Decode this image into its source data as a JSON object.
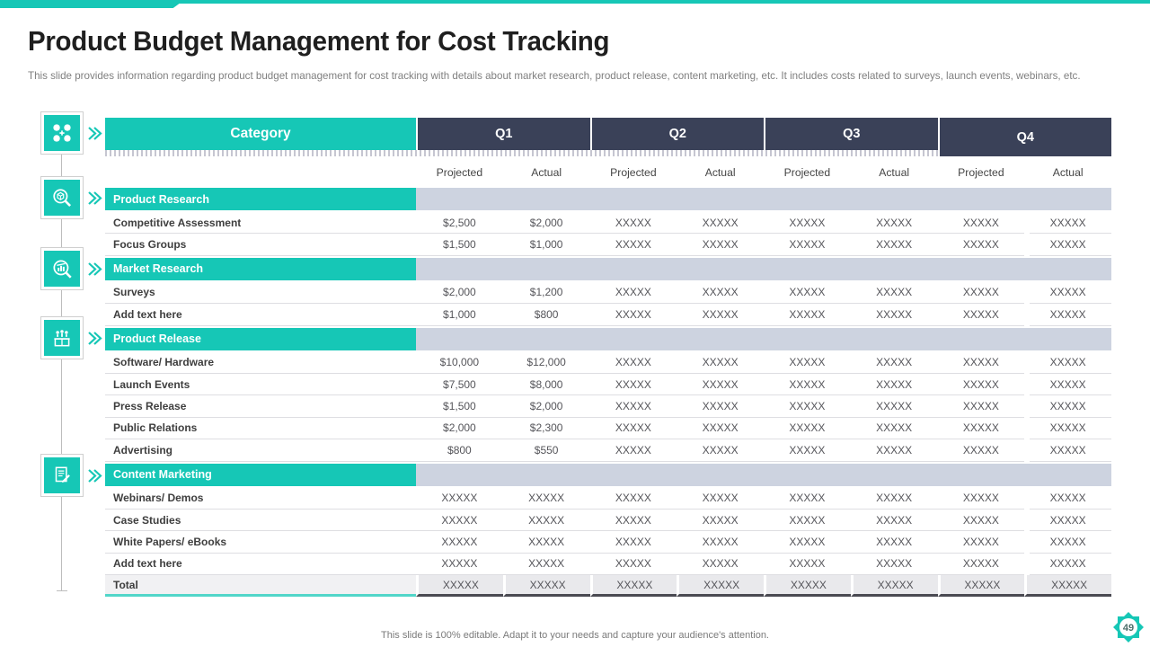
{
  "slide": {
    "title": "Product Budget Management for Cost Tracking",
    "subtitle": "This slide provides information regarding product budget management for cost tracking with details about market research, product release, content marketing, etc. It includes costs related to surveys, launch events, webinars, etc.",
    "footer": "This slide is 100% editable. Adapt it to your needs and capture your audience's attention.",
    "page_number": "49"
  },
  "colors": {
    "teal": "#16C7B6",
    "navy": "#3A4158",
    "section_band": "#CDD3E0",
    "total_band": "#E9E9EC"
  },
  "sidebar": {
    "icons": [
      "dots-plus-icon",
      "search-box-icon",
      "search-chart-icon",
      "launch-box-icon",
      "document-edit-icon"
    ]
  },
  "table": {
    "category_header": "Category",
    "quarter_headers": [
      "Q1",
      "Q2",
      "Q3",
      "Q4"
    ],
    "sub_headers": [
      "Projected",
      "Actual",
      "Projected",
      "Actual",
      "Projected",
      "Actual",
      "Projected",
      "Actual"
    ],
    "rows": [
      {
        "type": "section",
        "label": "Product Research"
      },
      {
        "type": "data",
        "label": "Competitive Assessment",
        "values": [
          "$2,500",
          "$2,000",
          "XXXXX",
          "XXXXX",
          "XXXXX",
          "XXXXX",
          "XXXXX",
          "XXXXX"
        ]
      },
      {
        "type": "data",
        "label": "Focus Groups",
        "values": [
          "$1,500",
          "$1,000",
          "XXXXX",
          "XXXXX",
          "XXXXX",
          "XXXXX",
          "XXXXX",
          "XXXXX"
        ]
      },
      {
        "type": "section",
        "label": "Market Research"
      },
      {
        "type": "data",
        "label": "Surveys",
        "values": [
          "$2,000",
          "$1,200",
          "XXXXX",
          "XXXXX",
          "XXXXX",
          "XXXXX",
          "XXXXX",
          "XXXXX"
        ]
      },
      {
        "type": "data",
        "label": "Add text here",
        "values": [
          "$1,000",
          "$800",
          "XXXXX",
          "XXXXX",
          "XXXXX",
          "XXXXX",
          "XXXXX",
          "XXXXX"
        ]
      },
      {
        "type": "section",
        "label": "Product Release"
      },
      {
        "type": "data",
        "label": "Software/ Hardware",
        "values": [
          "$10,000",
          "$12,000",
          "XXXXX",
          "XXXXX",
          "XXXXX",
          "XXXXX",
          "XXXXX",
          "XXXXX"
        ]
      },
      {
        "type": "data",
        "label": "Launch Events",
        "values": [
          "$7,500",
          "$8,000",
          "XXXXX",
          "XXXXX",
          "XXXXX",
          "XXXXX",
          "XXXXX",
          "XXXXX"
        ]
      },
      {
        "type": "data",
        "label": "Press Release",
        "values": [
          "$1,500",
          "$2,000",
          "XXXXX",
          "XXXXX",
          "XXXXX",
          "XXXXX",
          "XXXXX",
          "XXXXX"
        ]
      },
      {
        "type": "data",
        "label": "Public Relations",
        "values": [
          "$2,000",
          "$2,300",
          "XXXXX",
          "XXXXX",
          "XXXXX",
          "XXXXX",
          "XXXXX",
          "XXXXX"
        ]
      },
      {
        "type": "data",
        "label": "Advertising",
        "values": [
          "$800",
          "$550",
          "XXXXX",
          "XXXXX",
          "XXXXX",
          "XXXXX",
          "XXXXX",
          "XXXXX"
        ]
      },
      {
        "type": "section",
        "label": "Content Marketing"
      },
      {
        "type": "data",
        "label": "Webinars/ Demos",
        "values": [
          "XXXXX",
          "XXXXX",
          "XXXXX",
          "XXXXX",
          "XXXXX",
          "XXXXX",
          "XXXXX",
          "XXXXX"
        ]
      },
      {
        "type": "data",
        "label": "Case Studies",
        "values": [
          "XXXXX",
          "XXXXX",
          "XXXXX",
          "XXXXX",
          "XXXXX",
          "XXXXX",
          "XXXXX",
          "XXXXX"
        ]
      },
      {
        "type": "data",
        "label": "White Papers/ eBooks",
        "values": [
          "XXXXX",
          "XXXXX",
          "XXXXX",
          "XXXXX",
          "XXXXX",
          "XXXXX",
          "XXXXX",
          "XXXXX"
        ]
      },
      {
        "type": "data",
        "label": "Add text here",
        "values": [
          "XXXXX",
          "XXXXX",
          "XXXXX",
          "XXXXX",
          "XXXXX",
          "XXXXX",
          "XXXXX",
          "XXXXX"
        ]
      },
      {
        "type": "total",
        "label": "Total",
        "values": [
          "XXXXX",
          "XXXXX",
          "XXXXX",
          "XXXXX",
          "XXXXX",
          "XXXXX",
          "XXXXX",
          "XXXXX"
        ]
      }
    ]
  }
}
